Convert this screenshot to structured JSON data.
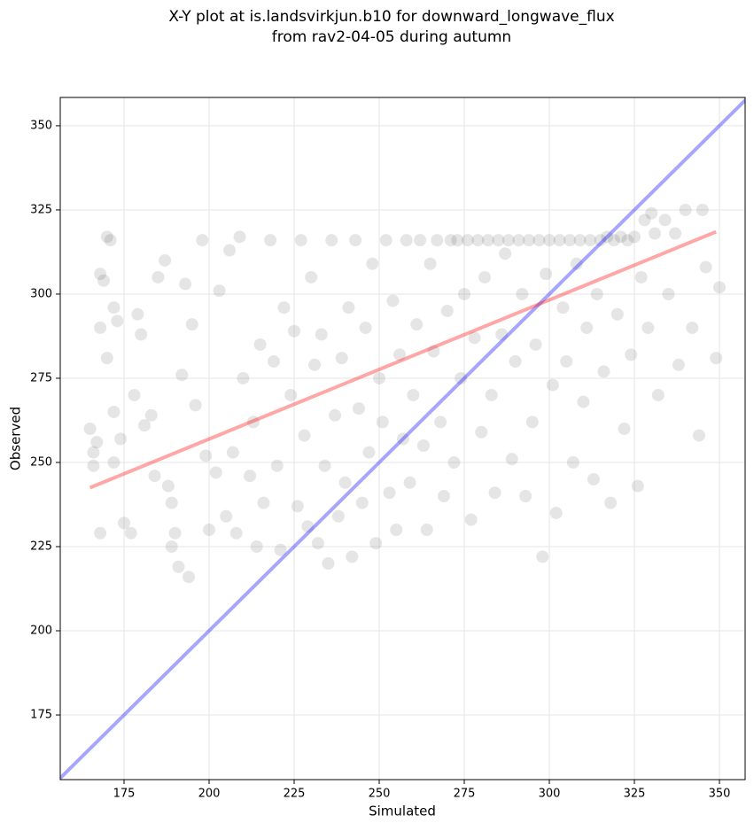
{
  "chart_data": {
    "type": "scatter",
    "title": [
      "X-Y plot at is.landsvirkjun.b10 for downward_longwave_flux",
      "from rav2-04-05 during autumn"
    ],
    "x_label": "Simulated",
    "y_label": "Observed",
    "xlim": [
      156.25,
      357.55
    ],
    "ylim": [
      155.8,
      358.4
    ],
    "xticks": [
      175,
      200,
      225,
      250,
      275,
      300,
      325,
      350
    ],
    "yticks": [
      175,
      200,
      225,
      250,
      275,
      300,
      325,
      350
    ],
    "grid": true,
    "series": [
      {
        "type": "scatter",
        "color": "#000000",
        "x": [
          165,
          166,
          166,
          167,
          168,
          168,
          168,
          169,
          170,
          170,
          171,
          172,
          172,
          172,
          173,
          174,
          175,
          177,
          178,
          179,
          180,
          181,
          183,
          184,
          185,
          187,
          188,
          189,
          189,
          190,
          191,
          192,
          193,
          194,
          195,
          196,
          198,
          199,
          200,
          202,
          203,
          205,
          206,
          207,
          208,
          209,
          210,
          212,
          213,
          214,
          215,
          216,
          218,
          219,
          220,
          221,
          222,
          224,
          225,
          226,
          227,
          228,
          229,
          230,
          231,
          232,
          233,
          234,
          235,
          236,
          237,
          238,
          239,
          240,
          241,
          242,
          243,
          244,
          245,
          246,
          247,
          248,
          249,
          250,
          251,
          252,
          253,
          254,
          255,
          256,
          257,
          258,
          259,
          260,
          261,
          262,
          263,
          264,
          265,
          266,
          267,
          268,
          269,
          270,
          271,
          272,
          273,
          274,
          275,
          276,
          277,
          278,
          279,
          280,
          281,
          282,
          283,
          284,
          285,
          286,
          287,
          288,
          289,
          290,
          291,
          292,
          293,
          294,
          295,
          296,
          297,
          298,
          299,
          300,
          301,
          302,
          303,
          304,
          305,
          306,
          307,
          308,
          309,
          310,
          311,
          312,
          313,
          314,
          315,
          316,
          317,
          318,
          319,
          320,
          321,
          322,
          323,
          324,
          325,
          326,
          327,
          328,
          329,
          330,
          331,
          332,
          334,
          335,
          337,
          338,
          340,
          342,
          344,
          345,
          346,
          350,
          349
        ],
        "y": [
          260,
          253,
          249,
          256,
          229,
          290,
          306,
          304,
          317,
          281,
          316,
          296,
          265,
          250,
          292,
          257,
          232,
          229,
          270,
          294,
          288,
          261,
          264,
          246,
          305,
          310,
          243,
          225,
          238,
          229,
          219,
          276,
          303,
          216,
          291,
          267,
          316,
          252,
          230,
          247,
          301,
          234,
          313,
          253,
          229,
          317,
          275,
          246,
          262,
          225,
          285,
          238,
          316,
          280,
          249,
          224,
          296,
          270,
          289,
          237,
          316,
          258,
          231,
          305,
          279,
          226,
          288,
          249,
          220,
          316,
          264,
          234,
          281,
          244,
          296,
          222,
          316,
          266,
          238,
          290,
          253,
          309,
          226,
          275,
          262,
          316,
          241,
          298,
          230,
          282,
          257,
          316,
          244,
          270,
          291,
          316,
          255,
          230,
          309,
          283,
          316,
          262,
          240,
          295,
          316,
          250,
          316,
          275,
          300,
          316,
          233,
          287,
          316,
          259,
          305,
          316,
          270,
          241,
          316,
          288,
          312,
          316,
          251,
          280,
          316,
          300,
          240,
          316,
          262,
          285,
          316,
          222,
          306,
          316,
          273,
          235,
          316,
          296,
          280,
          316,
          250,
          309,
          316,
          268,
          290,
          316,
          245,
          300,
          316,
          277,
          317,
          238,
          316,
          294,
          317,
          260,
          316,
          282,
          317,
          243,
          305,
          322,
          290,
          324,
          318,
          270,
          322,
          300,
          318,
          279,
          325,
          290,
          258,
          325,
          308,
          302,
          281
        ]
      },
      {
        "type": "line",
        "color": "#0000ff",
        "x": [
          156,
          358
        ],
        "y": [
          156,
          358
        ]
      },
      {
        "type": "line",
        "color": "#ff0000",
        "x": [
          165,
          349
        ],
        "y": [
          242.5,
          318.5
        ]
      }
    ]
  }
}
